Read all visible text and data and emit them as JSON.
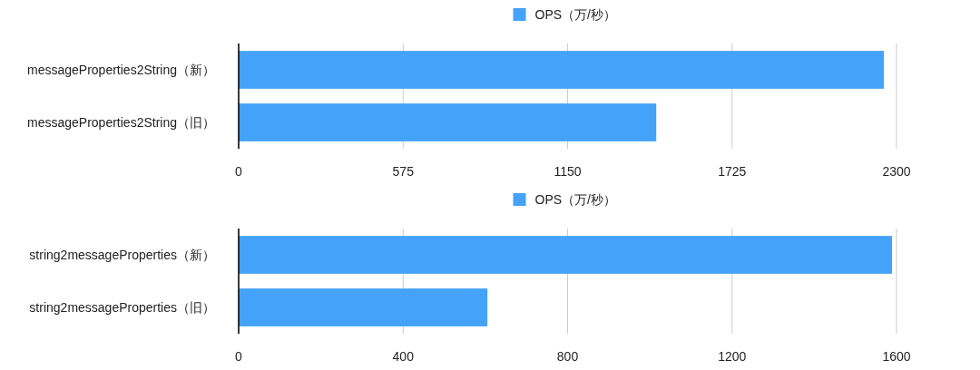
{
  "chart_data": [
    {
      "type": "bar",
      "orientation": "horizontal",
      "categories": [
        "messageProperties2String（新）",
        "messageProperties2String（旧）"
      ],
      "series": [
        {
          "name": "OPS（万/秒）",
          "color": "#44a2f8",
          "values": [
            2256,
            1460
          ]
        }
      ],
      "xlim": [
        0,
        2300
      ],
      "xticks": [
        0,
        575,
        1150,
        1725,
        2300
      ],
      "grid": "x",
      "legend": "top"
    },
    {
      "type": "bar",
      "orientation": "horizontal",
      "categories": [
        "string2messageProperties（新）",
        "string2messageProperties（旧）"
      ],
      "series": [
        {
          "name": "OPS（万/秒）",
          "color": "#44a2f8",
          "values": [
            1589,
            605
          ]
        }
      ],
      "xlim": [
        0,
        1600
      ],
      "xticks": [
        0,
        400,
        800,
        1200,
        1600
      ],
      "grid": "x",
      "legend": "top"
    }
  ]
}
